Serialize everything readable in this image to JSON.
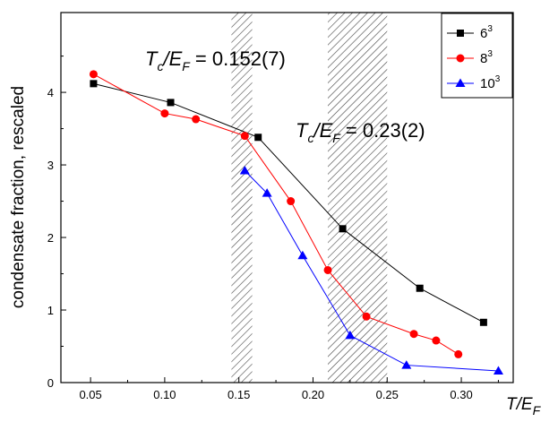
{
  "chart_data": {
    "type": "line",
    "xlabel": {
      "main": "T/E",
      "sub": "F"
    },
    "ylabel": "condensate fraction, rescaled",
    "xlim": [
      0.03,
      0.335
    ],
    "ylim": [
      0,
      5.1
    ],
    "xticks": [
      "0.05",
      "0.10",
      "0.15",
      "0.20",
      "0.25",
      "0.30"
    ],
    "yticks": [
      "0",
      "1",
      "2",
      "3",
      "4"
    ],
    "series": [
      {
        "name": "6",
        "name_sup": "3",
        "color": "#000000",
        "marker": "square",
        "x": [
          0.052,
          0.104,
          0.163,
          0.22,
          0.272,
          0.315
        ],
        "y": [
          4.12,
          3.86,
          3.38,
          2.12,
          1.3,
          0.83
        ]
      },
      {
        "name": "8",
        "name_sup": "3",
        "color": "#ff0000",
        "marker": "circle",
        "x": [
          0.052,
          0.1,
          0.121,
          0.154,
          0.185,
          0.21,
          0.236,
          0.268,
          0.283,
          0.298
        ],
        "y": [
          4.25,
          3.71,
          3.63,
          3.4,
          2.5,
          1.55,
          0.91,
          0.67,
          0.58,
          0.39
        ]
      },
      {
        "name": "10",
        "name_sup": "3",
        "color": "#0000ff",
        "marker": "triangle",
        "x": [
          0.154,
          0.169,
          0.193,
          0.225,
          0.263,
          0.325
        ],
        "y": [
          2.92,
          2.61,
          1.75,
          0.65,
          0.24,
          0.16
        ]
      }
    ],
    "shaded_regions": [
      {
        "xmin": 0.145,
        "xmax": 0.159
      },
      {
        "xmin": 0.21,
        "xmax": 0.25
      }
    ],
    "annotations": [
      {
        "T": "T",
        "c": "c",
        "E": "/E",
        "F": "F",
        "value": " = 0.152(7)"
      },
      {
        "T": "T",
        "c": "c",
        "E": "/E",
        "F": "F",
        "value": " = 0.23(2)"
      }
    ],
    "legend_position": "top-right"
  }
}
